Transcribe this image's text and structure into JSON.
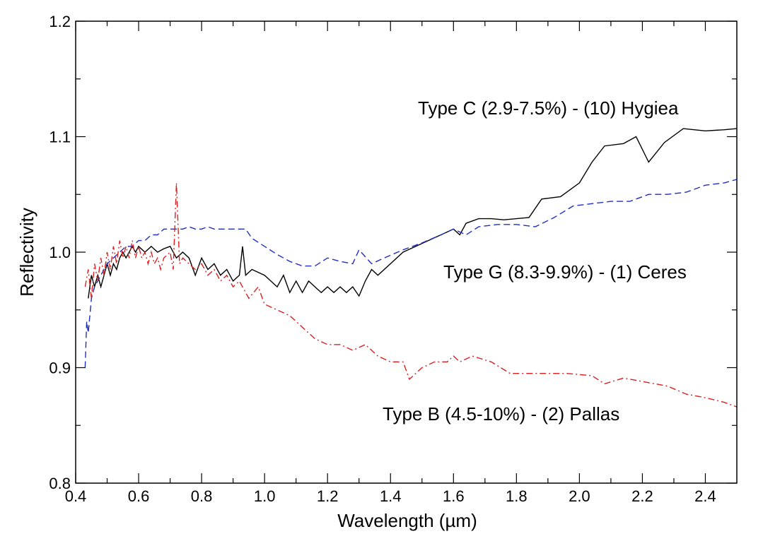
{
  "chart_data": {
    "type": "line",
    "title": "",
    "xlabel": "Wavelength (µm)",
    "ylabel": "Reflectivity",
    "xlim": [
      0.4,
      2.5
    ],
    "ylim": [
      0.8,
      1.2
    ],
    "x_ticks": [
      "0.4",
      "0.6",
      "0.8",
      "1.0",
      "1.2",
      "1.4",
      "1.6",
      "1.8",
      "2.0",
      "2.2",
      "2.4"
    ],
    "y_ticks": [
      "0.8",
      "0.9",
      "1.0",
      "1.1",
      "1.2"
    ],
    "grid": false,
    "legend": "none",
    "annotations": [
      {
        "text": "Type C (2.9-7.5%) - (10) Hygiea",
        "series": "hygiea"
      },
      {
        "text": "Type G (8.3-9.9%) - (1) Ceres",
        "series": "ceres"
      },
      {
        "text": "Type B (4.5-10%) - (2) Pallas",
        "series": "pallas"
      }
    ],
    "series": [
      {
        "id": "hygiea",
        "color": "#000000",
        "style": "solid",
        "points": [
          [
            0.44,
            0.96
          ],
          [
            0.45,
            0.98
          ],
          [
            0.46,
            0.97
          ],
          [
            0.47,
            0.98
          ],
          [
            0.48,
            0.97
          ],
          [
            0.49,
            0.98
          ],
          [
            0.5,
            0.99
          ],
          [
            0.51,
            0.98
          ],
          [
            0.52,
            0.99
          ],
          [
            0.53,
            0.985
          ],
          [
            0.54,
            0.995
          ],
          [
            0.55,
            1.0
          ],
          [
            0.56,
            0.995
          ],
          [
            0.57,
            1.0
          ],
          [
            0.58,
            1.005
          ],
          [
            0.59,
            1.0
          ],
          [
            0.6,
            1.005
          ],
          [
            0.62,
            1.0
          ],
          [
            0.64,
            1.005
          ],
          [
            0.66,
            1.0
          ],
          [
            0.68,
            1.003
          ],
          [
            0.7,
            1.005
          ],
          [
            0.72,
            0.995
          ],
          [
            0.74,
            1.0
          ],
          [
            0.76,
            0.995
          ],
          [
            0.78,
            0.98
          ],
          [
            0.8,
            0.995
          ],
          [
            0.82,
            0.985
          ],
          [
            0.84,
            0.99
          ],
          [
            0.86,
            0.98
          ],
          [
            0.88,
            0.985
          ],
          [
            0.9,
            0.975
          ],
          [
            0.92,
            0.98
          ],
          [
            0.93,
            1.005
          ],
          [
            0.94,
            0.98
          ],
          [
            0.96,
            0.985
          ],
          [
            1.0,
            0.98
          ],
          [
            1.02,
            0.975
          ],
          [
            1.04,
            0.97
          ],
          [
            1.06,
            0.98
          ],
          [
            1.08,
            0.965
          ],
          [
            1.1,
            0.975
          ],
          [
            1.12,
            0.965
          ],
          [
            1.14,
            0.975
          ],
          [
            1.16,
            0.97
          ],
          [
            1.18,
            0.965
          ],
          [
            1.2,
            0.97
          ],
          [
            1.22,
            0.965
          ],
          [
            1.24,
            0.97
          ],
          [
            1.26,
            0.965
          ],
          [
            1.28,
            0.97
          ],
          [
            1.3,
            0.962
          ],
          [
            1.32,
            0.975
          ],
          [
            1.34,
            0.985
          ],
          [
            1.36,
            0.98
          ],
          [
            1.4,
            0.99
          ],
          [
            1.44,
            1.0
          ],
          [
            1.48,
            1.005
          ],
          [
            1.52,
            1.01
          ],
          [
            1.56,
            1.015
          ],
          [
            1.6,
            1.02
          ],
          [
            1.62,
            1.015
          ],
          [
            1.64,
            1.025
          ],
          [
            1.68,
            1.029
          ],
          [
            1.72,
            1.029
          ],
          [
            1.76,
            1.028
          ],
          [
            1.8,
            1.029
          ],
          [
            1.84,
            1.03
          ],
          [
            1.88,
            1.046
          ],
          [
            1.94,
            1.048
          ],
          [
            2.0,
            1.06
          ],
          [
            2.04,
            1.078
          ],
          [
            2.08,
            1.092
          ],
          [
            2.14,
            1.094
          ],
          [
            2.18,
            1.1
          ],
          [
            2.22,
            1.078
          ],
          [
            2.27,
            1.095
          ],
          [
            2.33,
            1.107
          ],
          [
            2.4,
            1.105
          ],
          [
            2.46,
            1.106
          ],
          [
            2.5,
            1.107
          ]
        ]
      },
      {
        "id": "ceres",
        "color": "#1f2fbf",
        "style": "dashed",
        "points": [
          [
            0.43,
            0.9
          ],
          [
            0.435,
            0.94
          ],
          [
            0.44,
            0.93
          ],
          [
            0.45,
            0.96
          ],
          [
            0.46,
            0.97
          ],
          [
            0.47,
            0.975
          ],
          [
            0.48,
            0.98
          ],
          [
            0.49,
            0.985
          ],
          [
            0.5,
            0.99
          ],
          [
            0.52,
            0.995
          ],
          [
            0.54,
            1.0
          ],
          [
            0.56,
            1.005
          ],
          [
            0.58,
            1.005
          ],
          [
            0.6,
            1.01
          ],
          [
            0.62,
            1.01
          ],
          [
            0.64,
            1.015
          ],
          [
            0.66,
            1.015
          ],
          [
            0.68,
            1.02
          ],
          [
            0.7,
            1.02
          ],
          [
            0.72,
            1.02
          ],
          [
            0.74,
            1.02
          ],
          [
            0.76,
            1.022
          ],
          [
            0.78,
            1.02
          ],
          [
            0.8,
            1.02
          ],
          [
            0.82,
            1.022
          ],
          [
            0.84,
            1.02
          ],
          [
            0.86,
            1.02
          ],
          [
            0.88,
            1.02
          ],
          [
            0.9,
            1.02
          ],
          [
            0.92,
            1.02
          ],
          [
            0.94,
            1.02
          ],
          [
            0.96,
            1.012
          ],
          [
            1.0,
            1.005
          ],
          [
            1.04,
            0.998
          ],
          [
            1.08,
            0.992
          ],
          [
            1.12,
            0.988
          ],
          [
            1.16,
            0.988
          ],
          [
            1.2,
            0.995
          ],
          [
            1.24,
            0.992
          ],
          [
            1.28,
            0.99
          ],
          [
            1.3,
            1.002
          ],
          [
            1.34,
            0.99
          ],
          [
            1.38,
            0.995
          ],
          [
            1.44,
            1.002
          ],
          [
            1.5,
            1.008
          ],
          [
            1.56,
            1.015
          ],
          [
            1.6,
            1.02
          ],
          [
            1.64,
            1.015
          ],
          [
            1.68,
            1.022
          ],
          [
            1.74,
            1.024
          ],
          [
            1.8,
            1.024
          ],
          [
            1.86,
            1.022
          ],
          [
            1.92,
            1.03
          ],
          [
            1.98,
            1.04
          ],
          [
            2.04,
            1.042
          ],
          [
            2.1,
            1.044
          ],
          [
            2.16,
            1.044
          ],
          [
            2.22,
            1.05
          ],
          [
            2.28,
            1.05
          ],
          [
            2.34,
            1.052
          ],
          [
            2.4,
            1.058
          ],
          [
            2.46,
            1.06
          ],
          [
            2.5,
            1.063
          ]
        ]
      },
      {
        "id": "pallas",
        "color": "#d92020",
        "style": "dashdot",
        "points": [
          [
            0.43,
            0.97
          ],
          [
            0.44,
            0.985
          ],
          [
            0.45,
            0.96
          ],
          [
            0.46,
            0.99
          ],
          [
            0.47,
            0.975
          ],
          [
            0.48,
            0.995
          ],
          [
            0.49,
            0.98
          ],
          [
            0.5,
            1.0
          ],
          [
            0.51,
            0.985
          ],
          [
            0.52,
            1.005
          ],
          [
            0.53,
            0.99
          ],
          [
            0.54,
            1.01
          ],
          [
            0.55,
            0.995
          ],
          [
            0.56,
            1.005
          ],
          [
            0.57,
            0.995
          ],
          [
            0.58,
            1.01
          ],
          [
            0.59,
            0.995
          ],
          [
            0.6,
            1.005
          ],
          [
            0.61,
            0.995
          ],
          [
            0.62,
            1.0
          ],
          [
            0.63,
            0.99
          ],
          [
            0.64,
            1.0
          ],
          [
            0.65,
            0.99
          ],
          [
            0.66,
            0.995
          ],
          [
            0.67,
            0.985
          ],
          [
            0.68,
            0.995
          ],
          [
            0.7,
            1.0
          ],
          [
            0.71,
            0.985
          ],
          [
            0.72,
            1.06
          ],
          [
            0.73,
            0.99
          ],
          [
            0.74,
            0.995
          ],
          [
            0.76,
            0.99
          ],
          [
            0.78,
            0.985
          ],
          [
            0.8,
            0.99
          ],
          [
            0.82,
            0.98
          ],
          [
            0.84,
            0.985
          ],
          [
            0.86,
            0.975
          ],
          [
            0.88,
            0.98
          ],
          [
            0.9,
            0.97
          ],
          [
            0.92,
            0.975
          ],
          [
            0.95,
            0.96
          ],
          [
            0.98,
            0.97
          ],
          [
            1.0,
            0.955
          ],
          [
            1.04,
            0.95
          ],
          [
            1.08,
            0.945
          ],
          [
            1.12,
            0.935
          ],
          [
            1.16,
            0.925
          ],
          [
            1.2,
            0.92
          ],
          [
            1.24,
            0.92
          ],
          [
            1.28,
            0.915
          ],
          [
            1.32,
            0.92
          ],
          [
            1.36,
            0.91
          ],
          [
            1.4,
            0.905
          ],
          [
            1.44,
            0.905
          ],
          [
            1.46,
            0.89
          ],
          [
            1.5,
            0.9
          ],
          [
            1.54,
            0.905
          ],
          [
            1.58,
            0.905
          ],
          [
            1.6,
            0.91
          ],
          [
            1.62,
            0.905
          ],
          [
            1.66,
            0.91
          ],
          [
            1.72,
            0.905
          ],
          [
            1.78,
            0.895
          ],
          [
            1.86,
            0.895
          ],
          [
            1.96,
            0.895
          ],
          [
            2.04,
            0.893
          ],
          [
            2.08,
            0.886
          ],
          [
            2.14,
            0.891
          ],
          [
            2.2,
            0.888
          ],
          [
            2.28,
            0.884
          ],
          [
            2.34,
            0.877
          ],
          [
            2.4,
            0.874
          ],
          [
            2.46,
            0.87
          ],
          [
            2.5,
            0.866
          ]
        ]
      }
    ]
  }
}
